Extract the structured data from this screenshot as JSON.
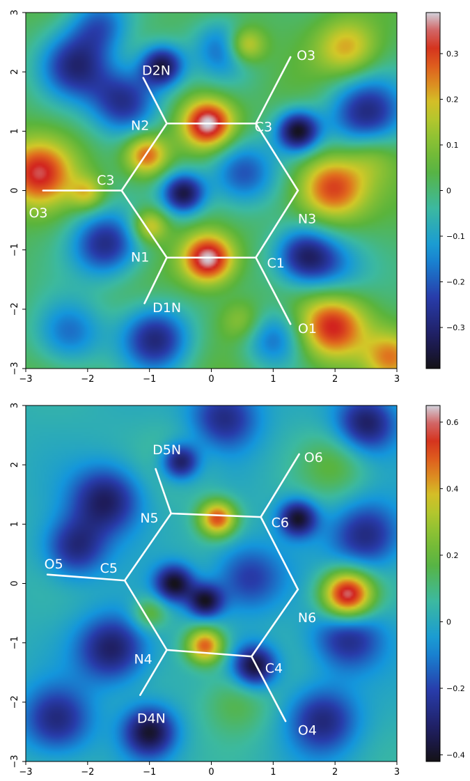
{
  "chart_data": [
    {
      "type": "heatmap",
      "title": "",
      "xlabel": "",
      "ylabel": "",
      "xlim": [
        -3,
        3
      ],
      "ylim": [
        -3,
        3
      ],
      "x_ticks": [
        -3,
        -2,
        -1,
        0,
        1,
        2,
        3
      ],
      "y_ticks": [
        -3,
        -2,
        -1,
        0,
        1,
        2,
        3
      ],
      "colorbar": {
        "range": [
          -0.39,
          0.39
        ],
        "ticks": [
          0.3,
          0.2,
          0.1,
          0,
          -0.1,
          -0.2,
          -0.3
        ],
        "tick_labels": [
          "0.3",
          "0.2",
          "0.1",
          "0",
          "−0.1",
          "−0.2",
          "−0.3"
        ]
      },
      "density_blobs": [
        {
          "x": -0.05,
          "y": 1.13,
          "value": 0.39,
          "s": 0.3
        },
        {
          "x": -0.05,
          "y": -1.15,
          "value": 0.39,
          "s": 0.3
        },
        {
          "x": 1.95,
          "y": -2.3,
          "value": 0.32,
          "s": 0.4
        },
        {
          "x": 1.95,
          "y": 0.05,
          "value": 0.3,
          "s": 0.4
        },
        {
          "x": -2.8,
          "y": 0.3,
          "value": 0.3,
          "s": 0.4
        },
        {
          "x": -1.05,
          "y": 0.6,
          "value": 0.28,
          "s": 0.25
        },
        {
          "x": 0.55,
          "y": 2.45,
          "value": 0.25,
          "s": 0.22
        },
        {
          "x": 2.2,
          "y": 2.4,
          "value": 0.2,
          "s": 0.35
        },
        {
          "x": -1.0,
          "y": -0.6,
          "value": 0.2,
          "s": 0.2
        },
        {
          "x": -2.0,
          "y": -0.05,
          "value": 0.16,
          "s": 0.2
        },
        {
          "x": 0.5,
          "y": -2.2,
          "value": 0.12,
          "s": 0.25
        },
        {
          "x": 2.9,
          "y": -2.8,
          "value": 0.2,
          "s": 0.3
        },
        {
          "x": 2.6,
          "y": 0.6,
          "value": 0.1,
          "s": 0.3
        },
        {
          "x": 1.4,
          "y": 1.0,
          "value": -0.39,
          "s": 0.25
        },
        {
          "x": -0.8,
          "y": 2.1,
          "value": -0.36,
          "s": 0.25
        },
        {
          "x": -0.45,
          "y": -0.05,
          "value": -0.36,
          "s": 0.25
        },
        {
          "x": 2.5,
          "y": 1.3,
          "value": -0.3,
          "s": 0.45
        },
        {
          "x": -1.4,
          "y": 1.5,
          "value": -0.3,
          "s": 0.4
        },
        {
          "x": -1.7,
          "y": -0.9,
          "value": -0.3,
          "s": 0.4
        },
        {
          "x": -2.2,
          "y": 2.1,
          "value": -0.28,
          "s": 0.4
        },
        {
          "x": 1.5,
          "y": -1.1,
          "value": -0.3,
          "s": 0.35
        },
        {
          "x": -0.9,
          "y": -2.5,
          "value": -0.3,
          "s": 0.4
        },
        {
          "x": 0.5,
          "y": 0.3,
          "value": -0.25,
          "s": 0.4
        },
        {
          "x": 1.0,
          "y": -2.5,
          "value": -0.2,
          "s": 0.35
        },
        {
          "x": 2.0,
          "y": -1.3,
          "value": -0.15,
          "s": 0.4
        },
        {
          "x": -2.3,
          "y": -2.4,
          "value": -0.2,
          "s": 0.4
        },
        {
          "x": 0.2,
          "y": 2.4,
          "value": -0.2,
          "s": 0.35
        },
        {
          "x": -1.8,
          "y": 2.8,
          "value": -0.2,
          "s": 0.35
        }
      ],
      "bonds": [
        {
          "from": [
            -0.72,
            1.13
          ],
          "to": [
            0.72,
            1.13
          ]
        },
        {
          "from": [
            0.72,
            1.13
          ],
          "to": [
            1.4,
            0.0
          ]
        },
        {
          "from": [
            1.4,
            0.0
          ],
          "to": [
            0.72,
            -1.13
          ]
        },
        {
          "from": [
            0.72,
            -1.13
          ],
          "to": [
            -0.72,
            -1.13
          ]
        },
        {
          "from": [
            -0.72,
            -1.13
          ],
          "to": [
            -1.45,
            0.0
          ]
        },
        {
          "from": [
            -1.45,
            0.0
          ],
          "to": [
            -0.72,
            1.13
          ]
        },
        {
          "from": [
            -0.72,
            1.13
          ],
          "to": [
            -1.1,
            1.9
          ]
        },
        {
          "from": [
            0.72,
            1.13
          ],
          "to": [
            1.28,
            2.25
          ]
        },
        {
          "from": [
            -1.45,
            0.0
          ],
          "to": [
            -2.72,
            0.0
          ]
        },
        {
          "from": [
            -0.72,
            -1.13
          ],
          "to": [
            -1.08,
            -1.9
          ]
        },
        {
          "from": [
            0.72,
            -1.13
          ],
          "to": [
            1.28,
            -2.25
          ]
        }
      ],
      "atom_labels": [
        {
          "text": "D2N",
          "x": -1.12,
          "y": 1.95
        },
        {
          "text": "O3",
          "x": 1.38,
          "y": 2.2
        },
        {
          "text": "N2",
          "x": -1.3,
          "y": 1.02
        },
        {
          "text": "C3",
          "x": 0.7,
          "y": 1.0
        },
        {
          "text": "C3",
          "x": -1.85,
          "y": 0.1
        },
        {
          "text": "O3",
          "x": -2.95,
          "y": -0.45
        },
        {
          "text": "N3",
          "x": 1.4,
          "y": -0.55
        },
        {
          "text": "N1",
          "x": -1.3,
          "y": -1.2
        },
        {
          "text": "C1",
          "x": 0.9,
          "y": -1.3
        },
        {
          "text": "D1N",
          "x": -0.95,
          "y": -2.05
        },
        {
          "text": "O1",
          "x": 1.4,
          "y": -2.4
        }
      ]
    },
    {
      "type": "heatmap",
      "title": "",
      "xlabel": "",
      "ylabel": "",
      "xlim": [
        -3,
        3
      ],
      "ylim": [
        -3,
        3
      ],
      "x_ticks": [
        -3,
        -2,
        -1,
        0,
        1,
        2,
        3
      ],
      "y_ticks": [
        -3,
        -2,
        -1,
        0,
        1,
        2,
        3
      ],
      "colorbar": {
        "range": [
          -0.42,
          0.65
        ],
        "ticks": [
          0.6,
          0.4,
          0.2,
          0,
          -0.2,
          -0.4
        ],
        "tick_labels": [
          "0.6",
          "0.4",
          "0.2",
          "0",
          "−0.2",
          "−0.4"
        ]
      },
      "density_blobs": [
        {
          "x": 2.2,
          "y": -0.2,
          "value": 0.65,
          "s": 0.3
        },
        {
          "x": 0.1,
          "y": 1.1,
          "value": 0.5,
          "s": 0.22
        },
        {
          "x": -0.1,
          "y": -1.05,
          "value": 0.48,
          "s": 0.22
        },
        {
          "x": -1.0,
          "y": -0.5,
          "value": 0.2,
          "s": 0.2
        },
        {
          "x": 2.0,
          "y": 2.0,
          "value": 0.15,
          "s": 0.4
        },
        {
          "x": 0.4,
          "y": -2.0,
          "value": 0.15,
          "s": 0.4
        },
        {
          "x": -0.45,
          "y": 2.1,
          "value": 0.1,
          "s": 0.4
        },
        {
          "x": -0.5,
          "y": 2.05,
          "value": -0.42,
          "s": 0.22
        },
        {
          "x": 1.4,
          "y": 1.1,
          "value": -0.42,
          "s": 0.22
        },
        {
          "x": -0.6,
          "y": 0.0,
          "value": -0.42,
          "s": 0.22
        },
        {
          "x": -0.1,
          "y": -0.3,
          "value": -0.4,
          "s": 0.2
        },
        {
          "x": 0.7,
          "y": -1.4,
          "value": -0.42,
          "s": 0.25
        },
        {
          "x": -1.0,
          "y": -2.5,
          "value": -0.4,
          "s": 0.3
        },
        {
          "x": 2.2,
          "y": -0.9,
          "value": -0.3,
          "s": 0.4
        },
        {
          "x": 2.5,
          "y": 0.8,
          "value": -0.3,
          "s": 0.4
        },
        {
          "x": -1.7,
          "y": 1.4,
          "value": -0.35,
          "s": 0.4
        },
        {
          "x": -1.6,
          "y": -1.1,
          "value": -0.35,
          "s": 0.4
        },
        {
          "x": -2.2,
          "y": 0.6,
          "value": -0.3,
          "s": 0.35
        },
        {
          "x": 1.8,
          "y": -2.3,
          "value": -0.3,
          "s": 0.4
        },
        {
          "x": 2.5,
          "y": 2.7,
          "value": -0.35,
          "s": 0.35
        },
        {
          "x": -2.5,
          "y": -2.3,
          "value": -0.3,
          "s": 0.4
        },
        {
          "x": 0.2,
          "y": 2.8,
          "value": -0.3,
          "s": 0.4
        },
        {
          "x": 0.6,
          "y": 0.1,
          "value": -0.25,
          "s": 0.4
        }
      ],
      "bonds": [
        {
          "from": [
            -0.65,
            1.18
          ],
          "to": [
            0.8,
            1.12
          ]
        },
        {
          "from": [
            0.8,
            1.12
          ],
          "to": [
            1.4,
            -0.1
          ]
        },
        {
          "from": [
            1.4,
            -0.1
          ],
          "to": [
            0.65,
            -1.23
          ]
        },
        {
          "from": [
            0.65,
            -1.23
          ],
          "to": [
            -0.72,
            -1.12
          ]
        },
        {
          "from": [
            -0.72,
            -1.12
          ],
          "to": [
            -1.4,
            0.05
          ]
        },
        {
          "from": [
            -1.4,
            0.05
          ],
          "to": [
            -0.65,
            1.18
          ]
        },
        {
          "from": [
            -0.65,
            1.18
          ],
          "to": [
            -0.9,
            1.93
          ]
        },
        {
          "from": [
            0.8,
            1.12
          ],
          "to": [
            1.42,
            2.18
          ]
        },
        {
          "from": [
            -1.4,
            0.05
          ],
          "to": [
            -2.65,
            0.15
          ]
        },
        {
          "from": [
            -0.72,
            -1.12
          ],
          "to": [
            -1.15,
            -1.88
          ]
        },
        {
          "from": [
            0.65,
            -1.23
          ],
          "to": [
            1.2,
            -2.32
          ]
        }
      ],
      "atom_labels": [
        {
          "text": "D5N",
          "x": -0.95,
          "y": 2.18
        },
        {
          "text": "O6",
          "x": 1.5,
          "y": 2.05
        },
        {
          "text": "N5",
          "x": -1.15,
          "y": 1.03
        },
        {
          "text": "C6",
          "x": 0.97,
          "y": 0.95
        },
        {
          "text": "O5",
          "x": -2.7,
          "y": 0.25
        },
        {
          "text": "C5",
          "x": -1.8,
          "y": 0.18
        },
        {
          "text": "N6",
          "x": 1.4,
          "y": -0.65
        },
        {
          "text": "N4",
          "x": -1.25,
          "y": -1.35
        },
        {
          "text": "C4",
          "x": 0.87,
          "y": -1.5
        },
        {
          "text": "D4N",
          "x": -1.2,
          "y": -2.35
        },
        {
          "text": "O4",
          "x": 1.4,
          "y": -2.55
        }
      ]
    }
  ]
}
